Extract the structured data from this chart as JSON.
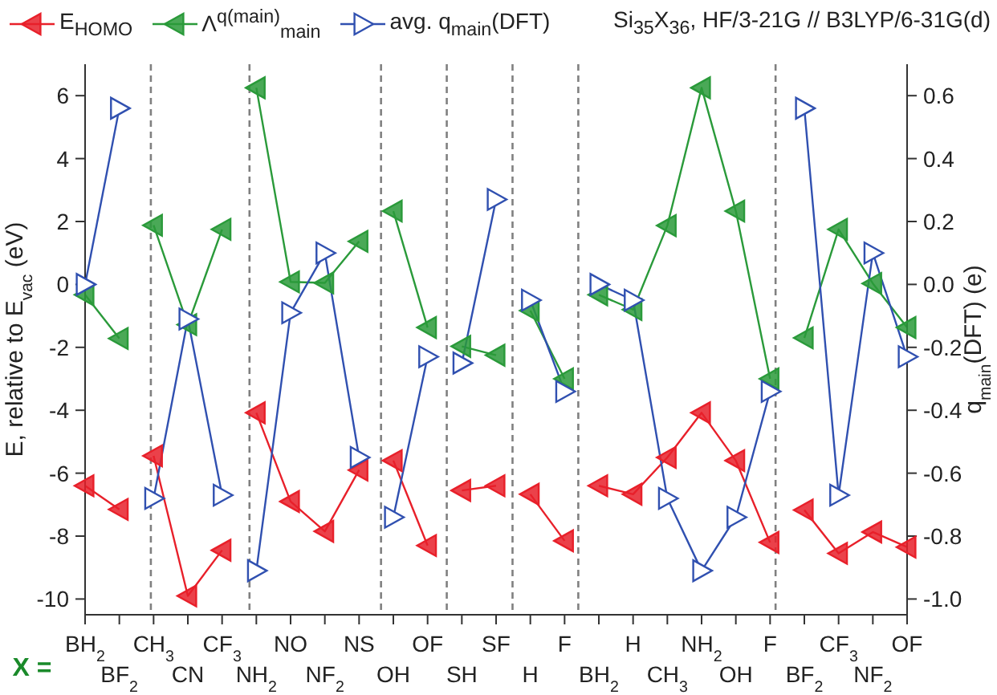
{
  "chart_data": {
    "type": "line",
    "title": "Si$_{35}$X$_{36}$, HF/3-21G // B3LYP/6-31G(d)",
    "xlabel": "X =",
    "ylabel": "E, relative to E$_{vac}$ (eV)",
    "y2label": "q$_{main}$(DFT) (e)",
    "legend": "top",
    "marker": "triangle",
    "line_style": "solid",
    "categories": [
      "BH$_{2}$",
      "BF$_{2}$",
      "CH$_{3}$",
      "CN",
      "CF$_{3}$",
      "NH$_{2}$",
      "NO",
      "NF$_{2}$",
      "NS",
      "OH",
      "OF",
      "SH",
      "SF",
      "H",
      "F",
      "BH$_{2}$",
      "H",
      "CH$_{3}$",
      "NH$_{2}$",
      "OH",
      "F",
      "BF$_{2}$",
      "CF$_{3}$",
      "NF$_{2}$",
      "OF"
    ],
    "ylim": [
      -10.5,
      7
    ],
    "yticks": [
      -10,
      -8,
      -6,
      -4,
      -2,
      0,
      2,
      4,
      6
    ],
    "y2lim": [
      -1.05,
      0.7
    ],
    "y2ticks": [
      {
        "value": -1,
        "label": "-1.0"
      },
      -0.8,
      -0.6,
      -0.4,
      -0.2,
      {
        "value": 0,
        "label": "0.0"
      },
      0.2,
      0.4,
      0.6
    ],
    "series": [
      {
        "name": "E$_{HOMO}$",
        "color": "#e8202a",
        "values": [
          -6.4,
          -7.15,
          null,
          null,
          null,
          null,
          null,
          null,
          null,
          null,
          null,
          null,
          null,
          null,
          null,
          null,
          null,
          null,
          null,
          null,
          null,
          null,
          null,
          null,
          null
        ]
      },
      {
        "color": "#e8202a",
        "values": [
          null,
          null,
          -5.45,
          -9.9,
          -8.45,
          null,
          null,
          null,
          null,
          null,
          null,
          null,
          null,
          null,
          null,
          null,
          null,
          null,
          null,
          null,
          null,
          null,
          null,
          null,
          null
        ]
      },
      {
        "color": "#e8202a",
        "values": [
          null,
          null,
          null,
          null,
          null,
          -4.08,
          -6.9,
          -7.85,
          -5.9,
          null,
          null,
          null,
          null,
          null,
          null,
          null,
          null,
          null,
          null,
          null,
          null,
          null,
          null,
          null,
          null
        ]
      },
      {
        "color": "#e8202a",
        "values": [
          null,
          null,
          null,
          null,
          null,
          null,
          null,
          null,
          null,
          -5.6,
          -8.3,
          null,
          null,
          null,
          null,
          null,
          null,
          null,
          null,
          null,
          null,
          null,
          null,
          null,
          null
        ]
      },
      {
        "color": "#e8202a",
        "values": [
          null,
          null,
          null,
          null,
          null,
          null,
          null,
          null,
          null,
          null,
          null,
          -6.55,
          -6.4,
          null,
          null,
          null,
          null,
          null,
          null,
          null,
          null,
          null,
          null,
          null,
          null
        ]
      },
      {
        "color": "#e8202a",
        "values": [
          null,
          null,
          null,
          null,
          null,
          null,
          null,
          null,
          null,
          null,
          null,
          null,
          null,
          -6.67,
          -8.15,
          null,
          null,
          null,
          null,
          null,
          null,
          null,
          null,
          null,
          null
        ]
      },
      {
        "color": "#e8202a",
        "values": [
          null,
          null,
          null,
          null,
          null,
          null,
          null,
          null,
          null,
          null,
          null,
          null,
          null,
          null,
          null,
          -6.4,
          -6.67,
          -5.5,
          -4.08,
          -5.6,
          -8.2,
          null,
          null,
          null,
          null
        ]
      },
      {
        "color": "#e8202a",
        "values": [
          null,
          null,
          null,
          null,
          null,
          null,
          null,
          null,
          null,
          null,
          null,
          null,
          null,
          null,
          null,
          null,
          null,
          null,
          null,
          null,
          null,
          -7.17,
          -8.55,
          -7.87,
          -8.35
        ]
      },
      {
        "name": "Λ$^{q(main)}$$_{main}$",
        "color": "#2a9a3a",
        "values": [
          -0.33,
          -1.72,
          null,
          null,
          null,
          null,
          null,
          null,
          null,
          null,
          null,
          null,
          null,
          null,
          null,
          null,
          null,
          null,
          null,
          null,
          null,
          null,
          null,
          null,
          null
        ]
      },
      {
        "color": "#2a9a3a",
        "values": [
          null,
          null,
          1.88,
          -1.28,
          1.75,
          null,
          null,
          null,
          null,
          null,
          null,
          null,
          null,
          null,
          null,
          null,
          null,
          null,
          null,
          null,
          null,
          null,
          null,
          null,
          null
        ]
      },
      {
        "color": "#2a9a3a",
        "values": [
          null,
          null,
          null,
          null,
          null,
          6.25,
          0.08,
          0.05,
          1.37,
          null,
          null,
          null,
          null,
          null,
          null,
          null,
          null,
          null,
          null,
          null,
          null,
          null,
          null,
          null,
          null
        ]
      },
      {
        "color": "#2a9a3a",
        "values": [
          null,
          null,
          null,
          null,
          null,
          null,
          null,
          null,
          null,
          2.33,
          -1.37,
          null,
          null,
          null,
          null,
          null,
          null,
          null,
          null,
          null,
          null,
          null,
          null,
          null,
          null
        ]
      },
      {
        "color": "#2a9a3a",
        "values": [
          null,
          null,
          null,
          null,
          null,
          null,
          null,
          null,
          null,
          null,
          null,
          -1.97,
          -2.25,
          null,
          null,
          null,
          null,
          null,
          null,
          null,
          null,
          null,
          null,
          null,
          null
        ]
      },
      {
        "color": "#2a9a3a",
        "values": [
          null,
          null,
          null,
          null,
          null,
          null,
          null,
          null,
          null,
          null,
          null,
          null,
          null,
          -0.83,
          -3.0,
          null,
          null,
          null,
          null,
          null,
          null,
          null,
          null,
          null,
          null
        ]
      },
      {
        "color": "#2a9a3a",
        "values": [
          null,
          null,
          null,
          null,
          null,
          null,
          null,
          null,
          null,
          null,
          null,
          null,
          null,
          null,
          null,
          -0.33,
          -0.8,
          1.87,
          6.25,
          2.33,
          -3.0,
          null,
          null,
          null,
          null
        ]
      },
      {
        "color": "#2a9a3a",
        "values": [
          null,
          null,
          null,
          null,
          null,
          null,
          null,
          null,
          null,
          null,
          null,
          null,
          null,
          null,
          null,
          null,
          null,
          null,
          null,
          null,
          null,
          -1.7,
          1.75,
          0.03,
          -1.37
        ]
      },
      {
        "name": "avg. q$_{main}$(DFT)",
        "color": "#3050b0",
        "axis": "y2",
        "values": [
          0.0,
          0.56,
          null,
          null,
          null,
          null,
          null,
          null,
          null,
          null,
          null,
          null,
          null,
          null,
          null,
          null,
          null,
          null,
          null,
          null,
          null,
          null,
          null,
          null,
          null
        ]
      },
      {
        "color": "#3050b0",
        "axis": "y2",
        "values": [
          null,
          null,
          -0.68,
          -0.11,
          -0.67,
          null,
          null,
          null,
          null,
          null,
          null,
          null,
          null,
          null,
          null,
          null,
          null,
          null,
          null,
          null,
          null,
          null,
          null,
          null,
          null
        ]
      },
      {
        "color": "#3050b0",
        "axis": "y2",
        "values": [
          null,
          null,
          null,
          null,
          null,
          -0.91,
          -0.09,
          0.1,
          -0.55,
          null,
          null,
          null,
          null,
          null,
          null,
          null,
          null,
          null,
          null,
          null,
          null,
          null,
          null,
          null,
          null
        ]
      },
      {
        "color": "#3050b0",
        "axis": "y2",
        "values": [
          null,
          null,
          null,
          null,
          null,
          null,
          null,
          null,
          null,
          -0.74,
          -0.23,
          null,
          null,
          null,
          null,
          null,
          null,
          null,
          null,
          null,
          null,
          null,
          null,
          null,
          null
        ]
      },
      {
        "color": "#3050b0",
        "axis": "y2",
        "values": [
          null,
          null,
          null,
          null,
          null,
          null,
          null,
          null,
          null,
          null,
          null,
          -0.25,
          0.27,
          null,
          null,
          null,
          null,
          null,
          null,
          null,
          null,
          null,
          null,
          null,
          null
        ]
      },
      {
        "color": "#3050b0",
        "axis": "y2",
        "values": [
          null,
          null,
          null,
          null,
          null,
          null,
          null,
          null,
          null,
          null,
          null,
          null,
          null,
          -0.05,
          -0.34,
          null,
          null,
          null,
          null,
          null,
          null,
          null,
          null,
          null,
          null
        ]
      },
      {
        "color": "#3050b0",
        "axis": "y2",
        "values": [
          null,
          null,
          null,
          null,
          null,
          null,
          null,
          null,
          null,
          null,
          null,
          null,
          null,
          null,
          null,
          0.0,
          -0.05,
          -0.68,
          -0.91,
          -0.74,
          -0.34,
          null,
          null,
          null,
          null
        ]
      },
      {
        "color": "#3050b0",
        "axis": "y2",
        "values": [
          null,
          null,
          null,
          null,
          null,
          null,
          null,
          null,
          null,
          null,
          null,
          null,
          null,
          null,
          null,
          null,
          null,
          null,
          null,
          null,
          null,
          0.56,
          -0.67,
          0.1,
          -0.23
        ]
      }
    ]
  }
}
